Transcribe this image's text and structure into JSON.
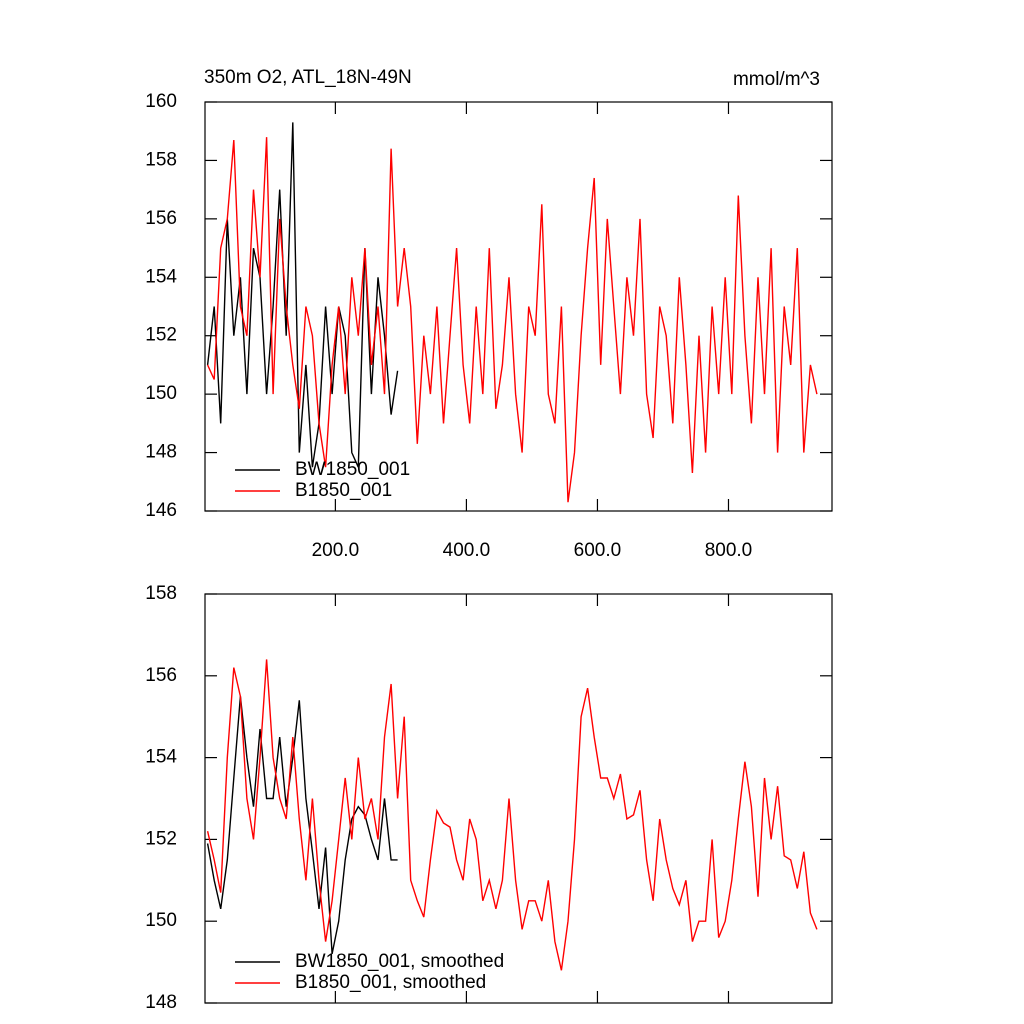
{
  "chart_data": [
    {
      "type": "line",
      "title": "350m O2, ATL_18N-49N",
      "units": "mmol/m^3",
      "xlim": [
        1,
        958
      ],
      "ylim": [
        146,
        160
      ],
      "xticks": [
        {
          "value": 200,
          "label": "200.0"
        },
        {
          "value": 400,
          "label": "400.0"
        },
        {
          "value": 600,
          "label": "600.0"
        },
        {
          "value": 800,
          "label": "800.0"
        }
      ],
      "yticks": [
        146,
        148,
        150,
        152,
        154,
        156,
        158,
        160
      ],
      "legend": "lower left",
      "series": [
        {
          "name": "BW1850_001",
          "color": "#000000",
          "x": [
            5,
            15,
            25,
            35,
            45,
            55,
            65,
            75,
            85,
            95,
            105,
            115,
            125,
            135,
            145,
            155,
            165,
            175,
            185,
            195,
            205,
            215,
            225,
            235,
            245,
            255,
            265,
            275,
            285,
            295
          ],
          "values": [
            151,
            153,
            149,
            156,
            152,
            154,
            150,
            155,
            154,
            150,
            153,
            157,
            152,
            159.3,
            148,
            151,
            147.5,
            149,
            153,
            150,
            153,
            152,
            148,
            147.5,
            155,
            150,
            154,
            152,
            149.3,
            150.8
          ]
        },
        {
          "name": "B1850_001",
          "color": "#ff0000",
          "x": [
            5,
            15,
            25,
            35,
            45,
            55,
            65,
            75,
            85,
            95,
            105,
            115,
            125,
            135,
            145,
            155,
            165,
            175,
            185,
            195,
            205,
            215,
            225,
            235,
            245,
            255,
            265,
            275,
            285,
            295,
            305,
            315,
            325,
            335,
            345,
            355,
            365,
            375,
            385,
            395,
            405,
            415,
            425,
            435,
            445,
            455,
            465,
            475,
            485,
            495,
            505,
            515,
            525,
            535,
            545,
            555,
            565,
            575,
            585,
            595,
            605,
            615,
            625,
            635,
            645,
            655,
            665,
            675,
            685,
            695,
            705,
            715,
            725,
            735,
            745,
            755,
            765,
            775,
            785,
            795,
            805,
            815,
            825,
            835,
            845,
            855,
            865,
            875,
            885,
            895,
            905,
            915,
            925,
            935
          ],
          "values": [
            151,
            150.5,
            155,
            156,
            158.7,
            153,
            152,
            157,
            154,
            158.8,
            150,
            156,
            153,
            151,
            149.5,
            153,
            152,
            149,
            147.5,
            151,
            153,
            150,
            154,
            152,
            155,
            151,
            153,
            150,
            158.4,
            153,
            155,
            153,
            148.3,
            152,
            150,
            153,
            149,
            152,
            155,
            151,
            149,
            153,
            150,
            155,
            149.5,
            151,
            154,
            150,
            148,
            153,
            152,
            156.5,
            150,
            149,
            153,
            146.3,
            148,
            152,
            155,
            157.4,
            151,
            156,
            153,
            150,
            154,
            152,
            156,
            150,
            148.5,
            153,
            152,
            149,
            154,
            151,
            147.3,
            152,
            148,
            153,
            150,
            154,
            150,
            156.8,
            152,
            149,
            154,
            150,
            155,
            148,
            153,
            151,
            155,
            148,
            151,
            150
          ]
        }
      ]
    },
    {
      "type": "line",
      "xlim": [
        1,
        958
      ],
      "ylim": [
        148,
        158
      ],
      "xticks": [
        200,
        400,
        600,
        800
      ],
      "yticks": [
        148,
        150,
        152,
        154,
        156,
        158
      ],
      "legend": "lower left",
      "series": [
        {
          "name": "BW1850_001, smoothed",
          "color": "#000000",
          "x": [
            5,
            15,
            25,
            35,
            45,
            55,
            65,
            75,
            85,
            95,
            105,
            115,
            125,
            135,
            145,
            155,
            165,
            175,
            185,
            195,
            205,
            215,
            225,
            235,
            245,
            255,
            265,
            275,
            285,
            295
          ],
          "values": [
            151.9,
            151,
            150.3,
            151.5,
            153.5,
            155.5,
            154,
            152.8,
            154.7,
            153,
            153,
            154.5,
            152.8,
            154,
            155.4,
            153,
            151.7,
            150.3,
            151.8,
            149.2,
            150,
            151.5,
            152.5,
            152.8,
            152.6,
            152,
            151.5,
            153,
            151.5,
            151.5
          ]
        },
        {
          "name": "B1850_001, smoothed",
          "color": "#ff0000",
          "x": [
            5,
            15,
            25,
            35,
            45,
            55,
            65,
            75,
            85,
            95,
            105,
            115,
            125,
            135,
            145,
            155,
            165,
            175,
            185,
            195,
            205,
            215,
            225,
            235,
            245,
            255,
            265,
            275,
            285,
            295,
            305,
            315,
            325,
            335,
            345,
            355,
            365,
            375,
            385,
            395,
            405,
            415,
            425,
            435,
            445,
            455,
            465,
            475,
            485,
            495,
            505,
            515,
            525,
            535,
            545,
            555,
            565,
            575,
            585,
            595,
            605,
            615,
            625,
            635,
            645,
            655,
            665,
            675,
            685,
            695,
            705,
            715,
            725,
            735,
            745,
            755,
            765,
            775,
            785,
            795,
            805,
            815,
            825,
            835,
            845,
            855,
            865,
            875,
            885,
            895,
            905,
            915,
            925,
            935
          ],
          "values": [
            152.2,
            151.5,
            150.7,
            154,
            156.2,
            155.5,
            153,
            152,
            154,
            156.4,
            154,
            153,
            152.5,
            154.5,
            152.5,
            151,
            153,
            151,
            149.5,
            150.5,
            152,
            153.5,
            152,
            154,
            152.5,
            153,
            152,
            154.5,
            155.8,
            153,
            155,
            151,
            150.5,
            150.1,
            151.5,
            152.7,
            152.4,
            152.3,
            151.5,
            151,
            152.5,
            152,
            150.5,
            151,
            150.3,
            151,
            153,
            151,
            149.8,
            150.5,
            150.5,
            150,
            151,
            149.5,
            148.8,
            150,
            152,
            155,
            155.7,
            154.5,
            153.5,
            153.5,
            153,
            153.6,
            152.5,
            152.6,
            153.2,
            151.5,
            150.5,
            152.5,
            151.5,
            150.8,
            150.4,
            151,
            149.5,
            150,
            150,
            152,
            149.6,
            150,
            151,
            152.5,
            153.9,
            152.8,
            150.6,
            153.5,
            152,
            153.3,
            151.6,
            151.5,
            150.8,
            151.7,
            150.2,
            149.8
          ]
        }
      ]
    }
  ]
}
